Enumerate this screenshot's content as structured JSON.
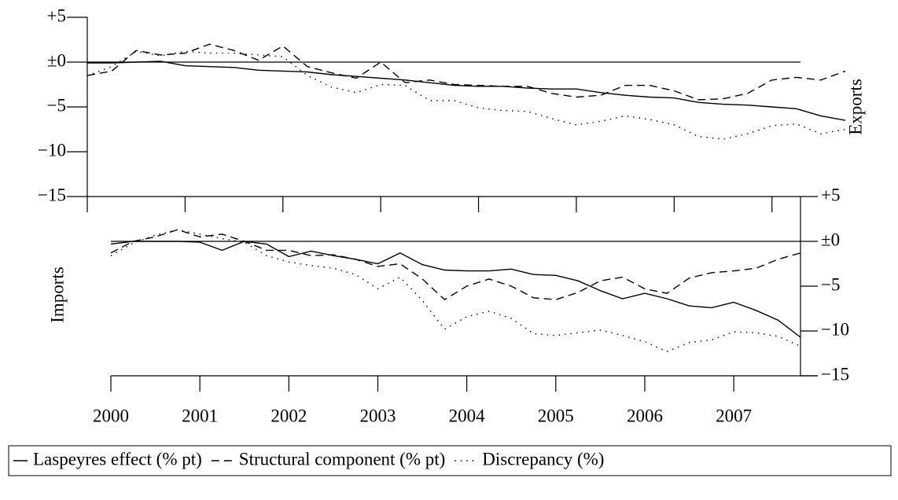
{
  "chart_data": [
    {
      "type": "line",
      "ylabel": "Exports",
      "x": [
        2000,
        2000.25,
        2000.5,
        2000.75,
        2001,
        2001.25,
        2001.5,
        2001.75,
        2002,
        2002.25,
        2002.5,
        2002.75,
        2003,
        2003.25,
        2003.5,
        2003.75,
        2004,
        2004.25,
        2004.5,
        2004.75,
        2005,
        2005.25,
        2005.5,
        2005.75,
        2006,
        2006.25,
        2006.5,
        2006.75,
        2007,
        2007.25,
        2007.5,
        2007.75
      ],
      "xlim": [
        2000,
        2007.75
      ],
      "xticks": [
        2000,
        2001,
        2002,
        2003,
        2004,
        2005,
        2006,
        2007
      ],
      "ylim": [
        -15,
        5
      ],
      "yticks": [
        {
          "value": 5,
          "label": "+5"
        },
        {
          "value": 0,
          "label": "±0"
        },
        {
          "value": -5,
          "label": "−5"
        },
        {
          "value": -10,
          "label": "−10"
        },
        {
          "value": -15,
          "label": "−15"
        }
      ],
      "series": [
        {
          "name": "Laspeyres effect (% pt)",
          "color": "#000000",
          "dash": "solid",
          "values": [
            -0.1,
            -0.1,
            0.0,
            0.1,
            -0.4,
            -0.5,
            -0.6,
            -0.9,
            -1.0,
            -1.1,
            -1.4,
            -1.6,
            -1.8,
            -2.0,
            -2.3,
            -2.6,
            -2.7,
            -2.7,
            -2.9,
            -3.0,
            -3.0,
            -3.4,
            -3.7,
            -3.9,
            -4.0,
            -4.5,
            -4.7,
            -4.8,
            -5.0,
            -5.2,
            -6.0,
            -6.5
          ]
        },
        {
          "name": "Structural component (% pt)",
          "color": "#000000",
          "dash": "dashed",
          "values": [
            -1.5,
            -1.0,
            1.3,
            0.8,
            1.0,
            2.0,
            1.3,
            0.2,
            1.8,
            -0.5,
            -1.2,
            -1.8,
            0.0,
            -2.3,
            -2.0,
            -2.5,
            -2.6,
            -2.7,
            -2.7,
            -3.5,
            -3.9,
            -3.7,
            -2.6,
            -2.6,
            -3.2,
            -4.2,
            -4.1,
            -3.5,
            -2.0,
            -1.7,
            -2.0,
            -1.0
          ]
        },
        {
          "name": "Discrepancy (%)",
          "color": "#000000",
          "dash": "dotted",
          "values": [
            -1.5,
            -0.5,
            1.2,
            0.7,
            1.2,
            1.0,
            1.0,
            0.8,
            0.6,
            -1.5,
            -2.8,
            -3.4,
            -2.5,
            -2.6,
            -4.3,
            -4.3,
            -5.1,
            -5.4,
            -5.5,
            -6.3,
            -7.0,
            -6.6,
            -6.0,
            -6.4,
            -7.0,
            -8.3,
            -8.6,
            -8.0,
            -7.1,
            -6.9,
            -8.0,
            -7.5
          ]
        }
      ]
    },
    {
      "type": "line",
      "ylabel": "Imports",
      "x": [
        2000,
        2000.25,
        2000.5,
        2000.75,
        2001,
        2001.25,
        2001.5,
        2001.75,
        2002,
        2002.25,
        2002.5,
        2002.75,
        2003,
        2003.25,
        2003.5,
        2003.75,
        2004,
        2004.25,
        2004.5,
        2004.75,
        2005,
        2005.25,
        2005.5,
        2005.75,
        2006,
        2006.25,
        2006.5,
        2006.75,
        2007,
        2007.25,
        2007.5,
        2007.75
      ],
      "xlim": [
        2000,
        2007.75
      ],
      "xticks": [
        2000,
        2001,
        2002,
        2003,
        2004,
        2005,
        2006,
        2007
      ],
      "ylim": [
        -15,
        5
      ],
      "yticks": [
        {
          "value": 5,
          "label": "+5"
        },
        {
          "value": 0,
          "label": "±0"
        },
        {
          "value": -5,
          "label": "−5"
        },
        {
          "value": -10,
          "label": "−10"
        },
        {
          "value": -15,
          "label": "−15"
        }
      ],
      "series": [
        {
          "color": "#000000",
          "dash": "solid",
          "values": [
            -0.3,
            0.0,
            0.0,
            0.0,
            -0.1,
            -1.0,
            0.0,
            -0.3,
            -1.7,
            -1.1,
            -1.6,
            -2.0,
            -2.5,
            -1.3,
            -2.6,
            -3.2,
            -3.3,
            -3.3,
            -3.1,
            -3.7,
            -3.8,
            -4.4,
            -5.5,
            -6.4,
            -5.8,
            -6.4,
            -7.2,
            -7.4,
            -6.8,
            -7.7,
            -8.8,
            -10.7
          ]
        },
        {
          "color": "#000000",
          "dash": "dashed",
          "values": [
            -1.3,
            0.0,
            0.5,
            1.3,
            0.5,
            0.8,
            0.0,
            -1.0,
            -1.0,
            -1.6,
            -1.5,
            -2.0,
            -2.8,
            -2.5,
            -4.2,
            -6.5,
            -5.0,
            -4.2,
            -5.0,
            -6.3,
            -6.5,
            -5.7,
            -4.4,
            -4.0,
            -5.3,
            -5.8,
            -4.1,
            -3.5,
            -3.3,
            -3.0,
            -2.0,
            -1.3
          ]
        },
        {
          "color": "#000000",
          "dash": "dotted",
          "values": [
            -1.6,
            -0.2,
            0.7,
            1.3,
            0.8,
            0.3,
            -0.1,
            -1.6,
            -2.3,
            -2.7,
            -3.0,
            -3.7,
            -5.3,
            -4.0,
            -6.6,
            -9.8,
            -8.4,
            -7.8,
            -8.6,
            -10.3,
            -10.5,
            -10.2,
            -9.9,
            -10.5,
            -11.2,
            -12.3,
            -11.3,
            -11.0,
            -10.1,
            -10.2,
            -10.6,
            -11.7
          ]
        }
      ]
    }
  ]
}
